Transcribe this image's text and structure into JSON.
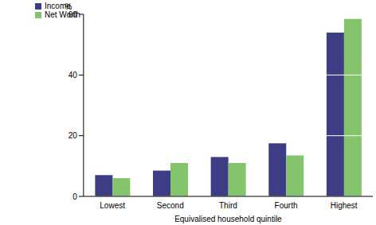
{
  "chart_data": {
    "type": "bar",
    "y_label": "%",
    "x_label": "Equivalised household quintile",
    "categories": [
      "Lowest",
      "Second",
      "Third",
      "Fourth",
      "Highest"
    ],
    "series": [
      {
        "name": "Income",
        "color": "#3d3d86",
        "values": [
          7,
          8.5,
          13,
          17.5,
          54
        ]
      },
      {
        "name": "Net Worth",
        "color": "#84c46c",
        "values": [
          6,
          11,
          11,
          13.5,
          58.5
        ]
      }
    ],
    "ylim": [
      0,
      60
    ],
    "yticks": [
      0,
      20,
      40,
      60
    ],
    "grid": true,
    "legend": "upper left"
  }
}
